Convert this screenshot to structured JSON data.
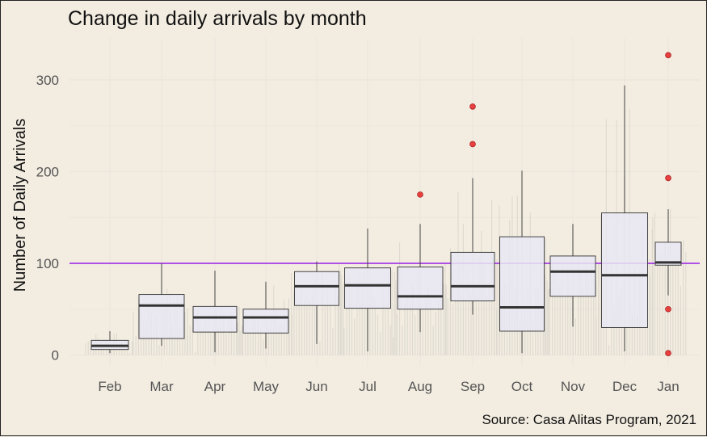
{
  "title": "Change in daily arrivals by month",
  "caption": "Source: Casa Alitas Program, 2021",
  "chart_data": {
    "type": "boxplot",
    "title": "Change in daily arrivals by month",
    "xlabel": "",
    "ylabel": "Number of Daily Arrivals",
    "ylim": [
      -10,
      340
    ],
    "yticks": [
      0,
      100,
      200,
      300
    ],
    "grid": true,
    "legend": "none",
    "reference_line": {
      "y": 100,
      "color": "#9b1fe8"
    },
    "colors": {
      "background": "#f3ede1",
      "box_fill": "#e8e6f2",
      "outlier": "#e8403f",
      "bars": "#d9d4cc",
      "grid": "#ebe6dd"
    },
    "categories": [
      "Feb",
      "Mar",
      "Apr",
      "May",
      "Jun",
      "Jul",
      "Aug",
      "Sep",
      "Oct",
      "Nov",
      "Dec",
      "Jan"
    ],
    "boxes": [
      {
        "month": "Feb",
        "min": 2,
        "q1": 6,
        "median": 10,
        "q3": 16,
        "max": 26,
        "outliers": []
      },
      {
        "month": "Mar",
        "min": 10,
        "q1": 18,
        "median": 54,
        "q3": 66,
        "max": 100,
        "outliers": []
      },
      {
        "month": "Apr",
        "min": 3,
        "q1": 25,
        "median": 41,
        "q3": 53,
        "max": 92,
        "outliers": []
      },
      {
        "month": "May",
        "min": 7,
        "q1": 24,
        "median": 41,
        "q3": 50,
        "max": 80,
        "outliers": []
      },
      {
        "month": "Jun",
        "min": 12,
        "q1": 54,
        "median": 75,
        "q3": 91,
        "max": 102,
        "outliers": []
      },
      {
        "month": "Jul",
        "min": 4,
        "q1": 51,
        "median": 76,
        "q3": 95,
        "max": 138,
        "outliers": []
      },
      {
        "month": "Aug",
        "min": 25,
        "q1": 50,
        "median": 64,
        "q3": 96,
        "max": 143,
        "outliers": [
          175
        ]
      },
      {
        "month": "Sep",
        "min": 44,
        "q1": 59,
        "median": 75,
        "q3": 112,
        "max": 193,
        "outliers": [
          230,
          271
        ]
      },
      {
        "month": "Oct",
        "min": 2,
        "q1": 26,
        "median": 52,
        "q3": 129,
        "max": 201,
        "outliers": []
      },
      {
        "month": "Nov",
        "min": 31,
        "q1": 64,
        "median": 91,
        "q3": 108,
        "max": 143,
        "outliers": []
      },
      {
        "month": "Dec",
        "min": 4,
        "q1": 30,
        "median": 87,
        "q3": 155,
        "max": 294,
        "outliers": []
      },
      {
        "month": "Jan",
        "min": 65,
        "q1": 98,
        "median": 101,
        "q3": 123,
        "max": 159,
        "outliers": [
          2,
          50,
          193,
          327
        ]
      }
    ]
  }
}
